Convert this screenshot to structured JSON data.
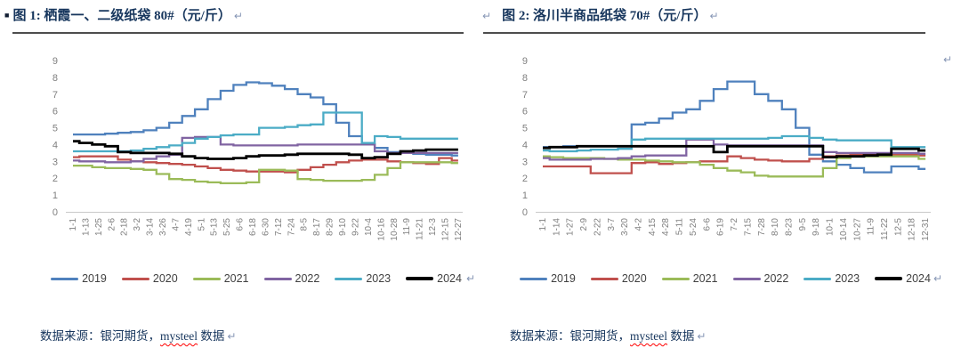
{
  "marks": {
    "pilcrow": "↵",
    "bullet": "■"
  },
  "colors": {
    "title_text": "#17365D",
    "source_text": "#17365D",
    "axis_text": "#7F7F7F",
    "legend_text": "#404040",
    "divider": "#4D4D4D",
    "axis_line": "#C9C9C9",
    "pilcrow": "#8696B5",
    "spellcheck_squiggle": "#FF0000",
    "series_2019": "#4F81BD",
    "series_2020": "#C0504D",
    "series_2021": "#9BBB59",
    "series_2022": "#8064A2",
    "series_2023": "#4BACC6",
    "series_2024": "#000000"
  },
  "panels": [
    {
      "title": "图 1: 栖霞一、二级纸袋 80#（元/斤）",
      "source_prefix": "数据来源：银河期货，",
      "source_brand": "mysteel",
      "source_suffix": " 数据"
    },
    {
      "title": "图 2: 洛川半商品纸袋 70#（元/斤）",
      "source_prefix": "数据来源：银河期货，",
      "source_brand": "mysteel",
      "source_suffix": " 数据"
    }
  ],
  "chart_data": [
    {
      "type": "line",
      "title": "栖霞一、二级纸袋 80#（元/斤）",
      "xlabel": "",
      "ylabel": "",
      "ylim": [
        0,
        9
      ],
      "yticks": [
        0,
        1,
        2,
        3,
        4,
        5,
        6,
        7,
        8,
        9
      ],
      "grid": false,
      "legend_position": "bottom",
      "x": [
        "1-1",
        "1-13",
        "1-25",
        "2-6",
        "2-18",
        "3-2",
        "3-14",
        "3-26",
        "4-7",
        "4-19",
        "5-1",
        "5-13",
        "5-25",
        "6-6",
        "6-18",
        "6-30",
        "7-12",
        "7-24",
        "8-5",
        "8-17",
        "8-29",
        "9-10",
        "9-22",
        "10-4",
        "10-16",
        "10-28",
        "11-9",
        "11-21",
        "12-3",
        "12-15",
        "12-27"
      ],
      "series": [
        {
          "name": "2019",
          "color": "#4F81BD",
          "values": [
            4.6,
            4.6,
            4.6,
            4.65,
            4.7,
            4.75,
            4.85,
            5.0,
            5.3,
            5.7,
            6.1,
            6.7,
            7.2,
            7.55,
            7.7,
            7.65,
            7.5,
            7.3,
            7.0,
            6.8,
            6.4,
            5.3,
            4.5,
            4.0,
            3.8,
            3.55,
            3.5,
            3.45,
            3.4,
            3.4,
            3.35
          ]
        },
        {
          "name": "2020",
          "color": "#C0504D",
          "values": [
            3.25,
            3.3,
            3.3,
            3.3,
            3.1,
            3.0,
            2.95,
            2.9,
            2.85,
            2.8,
            2.7,
            2.6,
            2.5,
            2.45,
            2.4,
            2.4,
            2.4,
            2.35,
            2.5,
            2.65,
            2.8,
            2.95,
            3.05,
            3.1,
            3.1,
            3.0,
            2.95,
            2.9,
            2.85,
            3.2,
            3.05
          ]
        },
        {
          "name": "2021",
          "color": "#9BBB59",
          "values": [
            2.75,
            2.75,
            2.65,
            2.6,
            2.6,
            2.55,
            2.5,
            2.25,
            1.95,
            1.9,
            1.8,
            1.75,
            1.7,
            1.7,
            1.75,
            2.5,
            2.5,
            2.45,
            1.95,
            1.9,
            1.85,
            1.85,
            1.85,
            1.9,
            2.2,
            2.6,
            2.95,
            2.95,
            2.95,
            2.95,
            2.9
          ]
        },
        {
          "name": "2022",
          "color": "#8064A2",
          "values": [
            3.05,
            3.0,
            3.0,
            2.95,
            2.95,
            3.0,
            3.15,
            3.3,
            3.4,
            4.4,
            4.45,
            4.45,
            4.0,
            3.95,
            3.95,
            3.95,
            3.95,
            3.95,
            4.0,
            4.0,
            4.0,
            4.0,
            4.0,
            4.0,
            3.6,
            3.5,
            3.5,
            3.5,
            3.5,
            3.5,
            3.5
          ]
        },
        {
          "name": "2023",
          "color": "#4BACC6",
          "values": [
            3.6,
            3.6,
            3.6,
            3.6,
            3.6,
            3.65,
            3.75,
            3.85,
            3.95,
            4.1,
            4.35,
            4.45,
            4.55,
            4.6,
            4.6,
            5.0,
            5.0,
            5.05,
            5.15,
            5.2,
            5.9,
            5.9,
            5.9,
            4.1,
            4.5,
            4.45,
            4.35,
            4.35,
            4.35,
            4.35,
            4.35
          ]
        },
        {
          "name": "2024",
          "color": "#000000",
          "values": [
            4.2,
            4.1,
            4.0,
            3.9,
            3.55,
            3.5,
            3.5,
            3.5,
            3.45,
            3.3,
            3.2,
            3.15,
            3.15,
            3.2,
            3.3,
            3.35,
            3.35,
            3.4,
            3.45,
            3.45,
            3.45,
            3.45,
            3.4,
            3.2,
            3.25,
            3.45,
            3.6,
            3.65,
            3.7,
            3.7,
            3.7
          ]
        }
      ]
    },
    {
      "type": "line",
      "title": "洛川半商品纸袋 70#（元/斤）",
      "xlabel": "",
      "ylabel": "",
      "ylim": [
        0,
        9
      ],
      "yticks": [
        0,
        1,
        2,
        3,
        4,
        5,
        6,
        7,
        8,
        9
      ],
      "grid": false,
      "legend_position": "bottom",
      "x": [
        "1-1",
        "1-14",
        "1-27",
        "2-9",
        "2-22",
        "3-7",
        "3-20",
        "4-2",
        "4-15",
        "4-28",
        "5-11",
        "5-24",
        "6-6",
        "6-19",
        "7-2",
        "7-15",
        "7-28",
        "8-10",
        "8-23",
        "9-5",
        "9-18",
        "10-1",
        "10-14",
        "10-27",
        "11-9",
        "11-22",
        "12-5",
        "12-18",
        "12-31"
      ],
      "series": [
        {
          "name": "2019",
          "color": "#4F81BD",
          "values": [
            3.85,
            3.85,
            3.9,
            3.9,
            3.9,
            3.9,
            3.9,
            5.2,
            5.3,
            5.55,
            5.9,
            6.1,
            6.6,
            7.3,
            7.75,
            7.75,
            7.0,
            6.6,
            6.1,
            5.0,
            3.4,
            3.0,
            2.8,
            2.6,
            2.35,
            2.35,
            2.7,
            2.7,
            2.55
          ]
        },
        {
          "name": "2020",
          "color": "#C0504D",
          "values": [
            2.7,
            2.7,
            2.7,
            2.7,
            2.3,
            2.3,
            2.3,
            2.9,
            2.95,
            2.85,
            2.9,
            2.95,
            3.0,
            3.0,
            3.3,
            3.2,
            3.1,
            3.05,
            3.0,
            3.0,
            3.15,
            3.3,
            3.35,
            3.4,
            3.4,
            3.4,
            3.4,
            3.4,
            3.35
          ]
        },
        {
          "name": "2021",
          "color": "#9BBB59",
          "values": [
            3.3,
            3.25,
            3.2,
            3.2,
            3.2,
            3.15,
            3.1,
            3.1,
            3.05,
            3.0,
            2.95,
            2.95,
            2.8,
            2.6,
            2.45,
            2.35,
            2.15,
            2.1,
            2.1,
            2.1,
            2.1,
            2.6,
            3.2,
            3.3,
            3.3,
            3.3,
            3.3,
            3.3,
            3.15
          ]
        },
        {
          "name": "2022",
          "color": "#8064A2",
          "values": [
            3.2,
            3.1,
            3.1,
            3.1,
            3.15,
            3.15,
            3.2,
            3.3,
            3.35,
            3.35,
            3.35,
            4.3,
            4.3,
            4.0,
            3.95,
            3.95,
            3.95,
            3.95,
            3.95,
            3.95,
            3.95,
            3.55,
            3.5,
            3.5,
            3.5,
            3.5,
            3.5,
            3.5,
            3.45
          ]
        },
        {
          "name": "2023",
          "color": "#4BACC6",
          "values": [
            3.65,
            3.6,
            3.6,
            3.65,
            3.7,
            3.7,
            3.75,
            4.3,
            4.35,
            4.35,
            4.35,
            4.35,
            4.35,
            4.35,
            4.35,
            4.35,
            4.35,
            4.4,
            4.5,
            4.5,
            4.4,
            4.3,
            4.25,
            4.25,
            4.25,
            4.25,
            3.85,
            3.85,
            3.85
          ]
        },
        {
          "name": "2024",
          "color": "#000000",
          "values": [
            3.8,
            3.85,
            3.85,
            3.9,
            3.9,
            3.9,
            3.9,
            3.9,
            3.9,
            3.9,
            3.9,
            3.9,
            3.9,
            3.55,
            3.9,
            3.9,
            3.9,
            3.9,
            3.9,
            3.9,
            3.9,
            3.25,
            3.3,
            3.3,
            3.35,
            3.4,
            3.75,
            3.75,
            3.65
          ]
        }
      ]
    }
  ]
}
